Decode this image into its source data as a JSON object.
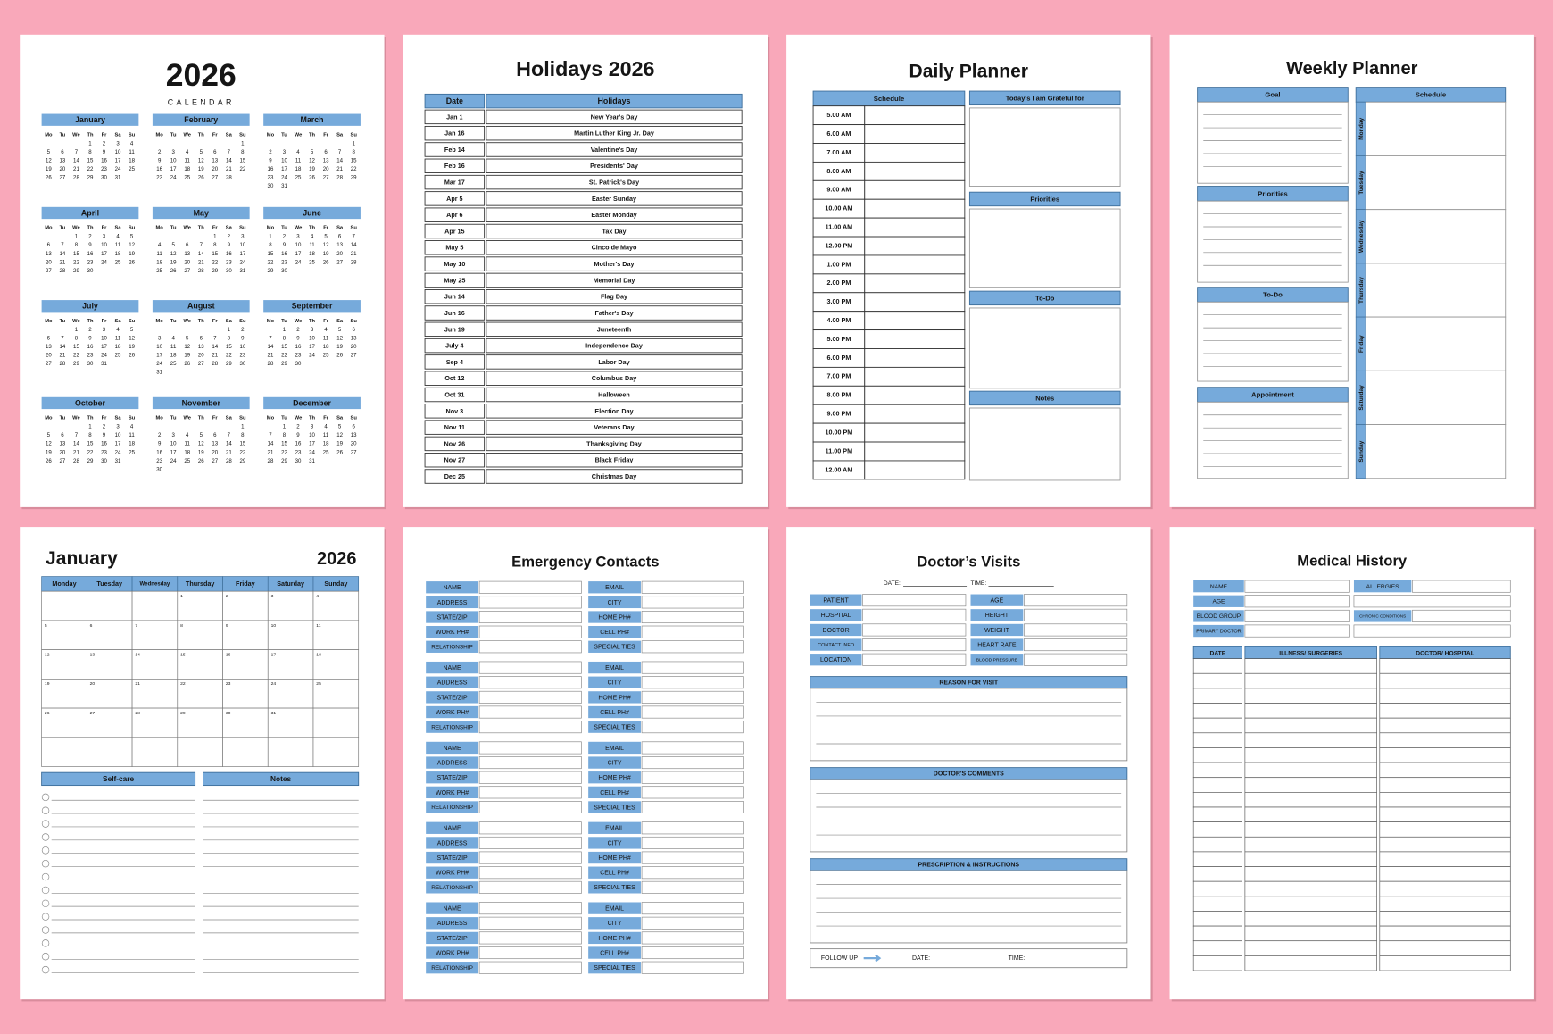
{
  "calendar": {
    "year": "2026",
    "subtitle": "CALENDAR",
    "weekdays": [
      "Mo",
      "Tu",
      "We",
      "Th",
      "Fr",
      "Sa",
      "Su"
    ],
    "months": [
      {
        "name": "January",
        "weeks": [
          [
            null,
            null,
            null,
            1,
            2,
            3,
            4
          ],
          [
            5,
            6,
            7,
            8,
            9,
            10,
            11
          ],
          [
            12,
            13,
            14,
            15,
            16,
            17,
            18
          ],
          [
            19,
            20,
            21,
            22,
            23,
            24,
            25
          ],
          [
            26,
            27,
            28,
            29,
            30,
            31
          ]
        ]
      },
      {
        "name": "February",
        "weeks": [
          [
            null,
            null,
            null,
            null,
            null,
            null,
            1
          ],
          [
            2,
            3,
            4,
            5,
            6,
            7,
            8
          ],
          [
            9,
            10,
            11,
            12,
            13,
            14,
            15
          ],
          [
            16,
            17,
            18,
            19,
            20,
            21,
            22
          ],
          [
            23,
            24,
            25,
            26,
            27,
            28
          ]
        ]
      },
      {
        "name": "March",
        "weeks": [
          [
            null,
            null,
            null,
            null,
            null,
            null,
            1
          ],
          [
            2,
            3,
            4,
            5,
            6,
            7,
            8
          ],
          [
            9,
            10,
            11,
            12,
            13,
            14,
            15
          ],
          [
            16,
            17,
            18,
            19,
            20,
            21,
            22
          ],
          [
            23,
            24,
            25,
            26,
            27,
            28,
            29
          ],
          [
            30,
            31
          ]
        ]
      },
      {
        "name": "April",
        "weeks": [
          [
            null,
            null,
            1,
            2,
            3,
            4,
            5
          ],
          [
            6,
            7,
            8,
            9,
            10,
            11,
            12
          ],
          [
            13,
            14,
            15,
            16,
            17,
            18,
            19
          ],
          [
            20,
            21,
            22,
            23,
            24,
            25,
            26
          ],
          [
            27,
            28,
            29,
            30
          ]
        ]
      },
      {
        "name": "May",
        "weeks": [
          [
            null,
            null,
            null,
            null,
            1,
            2,
            3
          ],
          [
            4,
            5,
            6,
            7,
            8,
            9,
            10
          ],
          [
            11,
            12,
            13,
            14,
            15,
            16,
            17
          ],
          [
            18,
            19,
            20,
            21,
            22,
            23,
            24
          ],
          [
            25,
            26,
            27,
            28,
            29,
            30,
            31
          ]
        ]
      },
      {
        "name": "June",
        "weeks": [
          [
            1,
            2,
            3,
            4,
            5,
            6,
            7
          ],
          [
            8,
            9,
            10,
            11,
            12,
            13,
            14
          ],
          [
            15,
            16,
            17,
            18,
            19,
            20,
            21
          ],
          [
            22,
            23,
            24,
            25,
            26,
            27,
            28
          ],
          [
            29,
            30
          ]
        ]
      },
      {
        "name": "July",
        "weeks": [
          [
            null,
            null,
            1,
            2,
            3,
            4,
            5
          ],
          [
            6,
            7,
            8,
            9,
            10,
            11,
            12
          ],
          [
            13,
            14,
            15,
            16,
            17,
            18,
            19
          ],
          [
            20,
            21,
            22,
            23,
            24,
            25,
            26
          ],
          [
            27,
            28,
            29,
            30,
            31
          ]
        ]
      },
      {
        "name": "August",
        "weeks": [
          [
            null,
            null,
            null,
            null,
            null,
            1,
            2
          ],
          [
            3,
            4,
            5,
            6,
            7,
            8,
            9
          ],
          [
            10,
            11,
            12,
            13,
            14,
            15,
            16
          ],
          [
            17,
            18,
            19,
            20,
            21,
            22,
            23
          ],
          [
            24,
            25,
            26,
            27,
            28,
            29,
            30
          ],
          [
            31
          ]
        ]
      },
      {
        "name": "September",
        "weeks": [
          [
            null,
            1,
            2,
            3,
            4,
            5,
            6
          ],
          [
            7,
            8,
            9,
            10,
            11,
            12,
            13
          ],
          [
            14,
            15,
            16,
            17,
            18,
            19,
            20
          ],
          [
            21,
            22,
            23,
            24,
            25,
            26,
            27
          ],
          [
            28,
            29,
            30
          ]
        ]
      },
      {
        "name": "October",
        "weeks": [
          [
            null,
            null,
            null,
            1,
            2,
            3,
            4
          ],
          [
            5,
            6,
            7,
            8,
            9,
            10,
            11
          ],
          [
            12,
            13,
            14,
            15,
            16,
            17,
            18
          ],
          [
            19,
            20,
            21,
            22,
            23,
            24,
            25
          ],
          [
            26,
            27,
            28,
            29,
            30,
            31
          ]
        ]
      },
      {
        "name": "November",
        "weeks": [
          [
            null,
            null,
            null,
            null,
            null,
            null,
            1
          ],
          [
            2,
            3,
            4,
            5,
            6,
            7,
            8
          ],
          [
            9,
            10,
            11,
            12,
            13,
            14,
            15
          ],
          [
            16,
            17,
            18,
            19,
            20,
            21,
            22
          ],
          [
            23,
            24,
            25,
            26,
            27,
            28,
            29
          ],
          [
            30
          ]
        ]
      },
      {
        "name": "December",
        "weeks": [
          [
            null,
            1,
            2,
            3,
            4,
            5,
            6
          ],
          [
            7,
            8,
            9,
            10,
            11,
            12,
            13
          ],
          [
            14,
            15,
            16,
            17,
            18,
            19,
            20
          ],
          [
            21,
            22,
            23,
            24,
            25,
            26,
            27
          ],
          [
            28,
            29,
            30,
            31
          ]
        ]
      }
    ]
  },
  "holidays": {
    "title": "Holidays 2026",
    "headers": [
      "Date",
      "Holidays"
    ],
    "rows": [
      [
        "Jan 1",
        "New Year's Day"
      ],
      [
        "Jan 16",
        "Martin Luther King Jr. Day"
      ],
      [
        "Feb 14",
        "Valentine's Day"
      ],
      [
        "Feb 16",
        "Presidents' Day"
      ],
      [
        "Mar 17",
        "St. Patrick's Day"
      ],
      [
        "Apr 5",
        "Easter Sunday"
      ],
      [
        "Apr 6",
        "Easter Monday"
      ],
      [
        "Apr 15",
        "Tax Day"
      ],
      [
        "May 5",
        "Cinco de Mayo"
      ],
      [
        "May 10",
        "Mother's Day"
      ],
      [
        "May 25",
        "Memorial Day"
      ],
      [
        "Jun 14",
        "Flag Day"
      ],
      [
        "Jun 16",
        "Father's Day"
      ],
      [
        "Jun 19",
        "Juneteenth"
      ],
      [
        "July 4",
        "Independence Day"
      ],
      [
        "Sep 4",
        "Labor Day"
      ],
      [
        "Oct 12",
        "Columbus Day"
      ],
      [
        "Oct 31",
        "Halloween"
      ],
      [
        "Nov 3",
        "Election Day"
      ],
      [
        "Nov 11",
        "Veterans Day"
      ],
      [
        "Nov 26",
        "Thanksgiving Day"
      ],
      [
        "Nov 27",
        "Black Friday"
      ],
      [
        "Dec 25",
        "Christmas Day"
      ]
    ]
  },
  "daily_planner": {
    "title": "Daily Planner",
    "schedule_header": "Schedule",
    "times": [
      "5.00 AM",
      "6.00 AM",
      "7.00 AM",
      "8.00 AM",
      "9.00 AM",
      "10.00 AM",
      "11.00 AM",
      "12.00 PM",
      "1.00 PM",
      "2.00 PM",
      "3.00 PM",
      "4.00 PM",
      "5.00 PM",
      "6.00 PM",
      "7.00 PM",
      "8.00 PM",
      "9.00 PM",
      "10.00 PM",
      "11.00 PM",
      "12.00 AM"
    ],
    "sections": [
      "Today's I am Grateful for",
      "Priorities",
      "To-Do",
      "Notes"
    ]
  },
  "weekly_planner": {
    "title": "Weekly Planner",
    "sections": [
      "Goal",
      "Priorities",
      "To-Do",
      "Appointment"
    ],
    "schedule_header": "Schedule",
    "days": [
      "Monday",
      "Tuesday",
      "Wednesday",
      "Thursday",
      "Friday",
      "Saturday",
      "Sunday"
    ]
  },
  "monthly": {
    "month": "January",
    "year": "2026",
    "weekdays": [
      "Monday",
      "Tuesday",
      "Wednesday",
      "Thursday",
      "Friday",
      "Saturday",
      "Sunday"
    ],
    "weeks": [
      [
        null,
        null,
        null,
        1,
        2,
        3,
        4
      ],
      [
        5,
        6,
        7,
        8,
        9,
        10,
        11
      ],
      [
        12,
        13,
        14,
        15,
        16,
        17,
        18
      ],
      [
        19,
        20,
        21,
        22,
        23,
        24,
        25
      ],
      [
        26,
        27,
        28,
        29,
        30,
        31
      ]
    ],
    "sections": [
      "Self-care",
      "Notes"
    ]
  },
  "emergency_contacts": {
    "title": "Emergency Contacts",
    "left_fields": [
      "NAME",
      "ADDRESS",
      "STATE/ZIP",
      "WORK PH#",
      "RELATIONSHIP"
    ],
    "right_fields": [
      "EMAIL",
      "CITY",
      "HOME PH#",
      "CELL PH#",
      "SPECIAL TIES"
    ]
  },
  "doctors_visits": {
    "title": "Doctor’s Visits",
    "date_label": "DATE:",
    "time_label": "TIME:",
    "left_fields": [
      "PATIENT",
      "HOSPITAL",
      "DOCTOR",
      "CONTACT INFO",
      "LOCATION"
    ],
    "right_fields": [
      "AGE",
      "HEIGHT",
      "WEIGHT",
      "HEART RATE",
      "BLOOD PRESSURE"
    ],
    "sections": [
      "REASON FOR VISIT",
      "DOCTOR'S COMMENTS",
      "PRESCRIPTION & INSTRUCTIONS"
    ],
    "footer": {
      "follow_up": "FOLLOW UP",
      "date_label": "DATE:",
      "time_label": "TIME:"
    }
  },
  "medical_history": {
    "title": "Medical History",
    "left_fields": [
      "NAME",
      "AGE",
      "BLOOD GROUP",
      "PRIMARY DOCTOR"
    ],
    "right_fields": [
      "ALLERGIES",
      "CHRONIC CONDITIONS"
    ],
    "table_headers": [
      "DATE",
      "ILLNESS/ SURGERIES",
      "DOCTOR/ HOSPITAL"
    ]
  }
}
